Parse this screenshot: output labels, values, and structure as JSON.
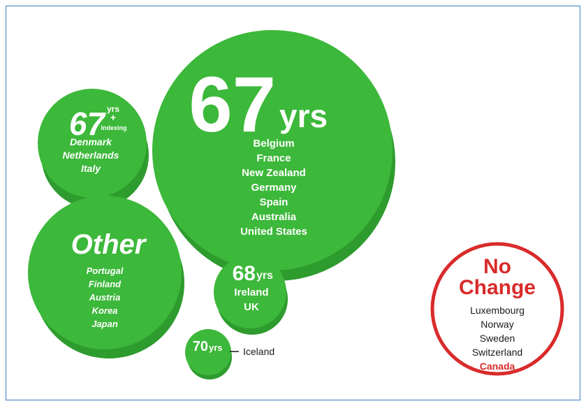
{
  "groups": {
    "big": {
      "age": "67",
      "unit": "yrs",
      "countries": [
        "Belgium",
        "France",
        "New Zealand",
        "Germany",
        "Spain",
        "Australia",
        "United States"
      ]
    },
    "indexing": {
      "age": "67",
      "unit": "yrs",
      "plus": "+",
      "extra": "Indexing",
      "countries": [
        "Denmark",
        "Netherlands",
        "Italy"
      ]
    },
    "other": {
      "title": "Other",
      "countries": [
        "Portugal",
        "Finland",
        "Austria",
        "Korea",
        "Japan"
      ]
    },
    "sixty_eight": {
      "age": "68",
      "unit": "yrs",
      "countries": [
        "Ireland",
        "UK"
      ]
    },
    "seventy": {
      "age": "70",
      "unit": "yrs",
      "countries": [
        "Iceland"
      ]
    },
    "no_change": {
      "title_1": "No",
      "title_2": "Change",
      "countries": [
        "Luxembourg",
        "Norway",
        "Sweden",
        "Switzerland"
      ],
      "emphasized": "Canada"
    }
  }
}
